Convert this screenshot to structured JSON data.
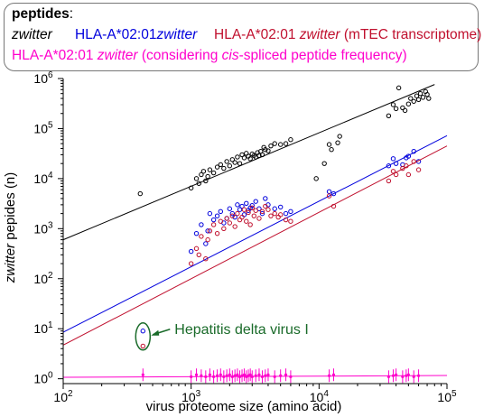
{
  "legend": {
    "title": "peptides",
    "title_suffix": ":",
    "entries": [
      {
        "parts": [
          {
            "t": "zwitter",
            "i": true
          }
        ],
        "color": "#000000"
      },
      {
        "parts": [
          {
            "t": "HLA-A*02:01",
            "i": false
          },
          {
            "t": "zwitter",
            "i": true
          }
        ],
        "color": "#0000dd"
      },
      {
        "parts": [
          {
            "t": "HLA-A*02:01 ",
            "i": false
          },
          {
            "t": "zwitter",
            "i": true
          },
          {
            "t": " (mTEC transcriptome)",
            "i": false
          }
        ],
        "color": "#c0102e"
      },
      {
        "parts": [
          {
            "t": "HLA-A*02:01 ",
            "i": false
          },
          {
            "t": "zwitter",
            "i": true
          },
          {
            "t": " (considering ",
            "i": false
          },
          {
            "t": "cis",
            "i": true
          },
          {
            "t": "-spliced peptide frequency)",
            "i": false
          }
        ],
        "color": "#ff00cc"
      }
    ]
  },
  "chart_data": {
    "type": "scatter",
    "xscale": "log",
    "yscale": "log",
    "xlim": [
      100,
      100000
    ],
    "ylim": [
      0.8,
      1000000
    ],
    "xticks": [
      {
        "base": "10",
        "exp": "2"
      },
      {
        "base": "10",
        "exp": "3"
      },
      {
        "base": "10",
        "exp": "4"
      },
      {
        "base": "10",
        "exp": "5"
      }
    ],
    "yticks": [
      {
        "base": "10",
        "exp": "0"
      },
      {
        "base": "10",
        "exp": "1"
      },
      {
        "base": "10",
        "exp": "2"
      },
      {
        "base": "10",
        "exp": "3"
      },
      {
        "base": "10",
        "exp": "4"
      },
      {
        "base": "10",
        "exp": "5"
      },
      {
        "base": "10",
        "exp": "6"
      }
    ],
    "xlabel": "virus proteome size (amino acid)",
    "ylabel_italic": "zwitter",
    "ylabel_rest": " pepides (n)",
    "annotation": {
      "text": "Hepatitis delta virus I",
      "color": "#1a6b2a",
      "x": 420,
      "y": 7
    },
    "series": [
      {
        "color": "#000000",
        "fit": [
          [
            100,
            600
          ],
          [
            80000,
            760000
          ]
        ],
        "points": [
          [
            400,
            5000
          ],
          [
            1000,
            6500
          ],
          [
            1100,
            10000
          ],
          [
            1150,
            8000
          ],
          [
            1200,
            12000
          ],
          [
            1250,
            14000
          ],
          [
            1300,
            9000
          ],
          [
            1350,
            11000
          ],
          [
            1400,
            15000
          ],
          [
            1500,
            13000
          ],
          [
            1600,
            17000
          ],
          [
            1700,
            19000
          ],
          [
            1800,
            16000
          ],
          [
            1900,
            22000
          ],
          [
            2000,
            18000
          ],
          [
            2100,
            24000
          ],
          [
            2200,
            21000
          ],
          [
            2300,
            27000
          ],
          [
            2400,
            20000
          ],
          [
            2500,
            30000
          ],
          [
            2600,
            26000
          ],
          [
            2700,
            32000
          ],
          [
            2800,
            28000
          ],
          [
            2900,
            25000
          ],
          [
            3000,
            31000
          ],
          [
            3100,
            29000
          ],
          [
            3200,
            27000
          ],
          [
            3300,
            33000
          ],
          [
            3400,
            29000
          ],
          [
            3500,
            35000
          ],
          [
            3600,
            30000
          ],
          [
            3700,
            42000
          ],
          [
            3800,
            38000
          ],
          [
            4000,
            36000
          ],
          [
            4200,
            45000
          ],
          [
            4500,
            50000
          ],
          [
            5000,
            48000
          ],
          [
            5500,
            50000
          ],
          [
            6000,
            60000
          ],
          [
            9500,
            10000
          ],
          [
            11000,
            20000
          ],
          [
            12000,
            48000
          ],
          [
            12500,
            38000
          ],
          [
            14000,
            52000
          ],
          [
            14500,
            70000
          ],
          [
            35000,
            180000
          ],
          [
            38000,
            300000
          ],
          [
            40000,
            250000
          ],
          [
            42000,
            650000
          ],
          [
            45000,
            260000
          ],
          [
            47000,
            230000
          ],
          [
            50000,
            310000
          ],
          [
            52000,
            400000
          ],
          [
            55000,
            350000
          ],
          [
            58000,
            450000
          ],
          [
            60000,
            380000
          ],
          [
            62000,
            500000
          ],
          [
            65000,
            420000
          ],
          [
            68000,
            550000
          ],
          [
            70000,
            480000
          ],
          [
            72000,
            400000
          ]
        ]
      },
      {
        "color": "#0000dd",
        "fit": [
          [
            100,
            8.5
          ],
          [
            100000,
            72000
          ]
        ],
        "points": [
          [
            420,
            9
          ],
          [
            1000,
            350
          ],
          [
            1100,
            800
          ],
          [
            1200,
            1200
          ],
          [
            1300,
            500
          ],
          [
            1350,
            900
          ],
          [
            1400,
            2000
          ],
          [
            1500,
            1500
          ],
          [
            1600,
            1800
          ],
          [
            1700,
            2200
          ],
          [
            1800,
            1300
          ],
          [
            1900,
            1600
          ],
          [
            2000,
            2500
          ],
          [
            2100,
            2000
          ],
          [
            2200,
            1700
          ],
          [
            2300,
            3000
          ],
          [
            2400,
            2400
          ],
          [
            2500,
            2800
          ],
          [
            2600,
            1900
          ],
          [
            2700,
            3200
          ],
          [
            2800,
            2300
          ],
          [
            2900,
            2600
          ],
          [
            3000,
            2900
          ],
          [
            3200,
            3500
          ],
          [
            3400,
            2500
          ],
          [
            3600,
            2000
          ],
          [
            3800,
            4000
          ],
          [
            4000,
            3000
          ],
          [
            4500,
            2500
          ],
          [
            5000,
            2700
          ],
          [
            5500,
            2000
          ],
          [
            6000,
            2200
          ],
          [
            12000,
            5500
          ],
          [
            13000,
            5000
          ],
          [
            35000,
            18000
          ],
          [
            38000,
            25000
          ],
          [
            40000,
            20000
          ],
          [
            45000,
            19000
          ],
          [
            48000,
            26000
          ],
          [
            50000,
            28000
          ],
          [
            55000,
            35000
          ],
          [
            60000,
            22000
          ]
        ]
      },
      {
        "color": "#c0102e",
        "fit": [
          [
            100,
            4.7
          ],
          [
            100000,
            45000
          ]
        ],
        "points": [
          [
            420,
            4.5
          ],
          [
            1000,
            200
          ],
          [
            1100,
            400
          ],
          [
            1150,
            300
          ],
          [
            1200,
            700
          ],
          [
            1300,
            250
          ],
          [
            1350,
            600
          ],
          [
            1400,
            900
          ],
          [
            1500,
            1200
          ],
          [
            1600,
            800
          ],
          [
            1700,
            1400
          ],
          [
            1800,
            1000
          ],
          [
            1900,
            1600
          ],
          [
            2000,
            1300
          ],
          [
            2100,
            1800
          ],
          [
            2200,
            1100
          ],
          [
            2300,
            2000
          ],
          [
            2400,
            1500
          ],
          [
            2500,
            1700
          ],
          [
            2600,
            2400
          ],
          [
            2700,
            1400
          ],
          [
            2800,
            2100
          ],
          [
            2900,
            1200
          ],
          [
            3000,
            2600
          ],
          [
            3100,
            1800
          ],
          [
            3200,
            2300
          ],
          [
            3400,
            1600
          ],
          [
            3600,
            2200
          ],
          [
            3800,
            2800
          ],
          [
            4000,
            2400
          ],
          [
            4200,
            1800
          ],
          [
            4500,
            2000
          ],
          [
            4800,
            1700
          ],
          [
            5000,
            1900
          ],
          [
            5500,
            1500
          ],
          [
            6000,
            1400
          ],
          [
            12000,
            4500
          ],
          [
            13000,
            2800
          ],
          [
            35000,
            9000
          ],
          [
            38000,
            14000
          ],
          [
            40000,
            12000
          ],
          [
            45000,
            16000
          ],
          [
            48000,
            18000
          ],
          [
            50000,
            12000
          ],
          [
            55000,
            22000
          ],
          [
            60000,
            15000
          ]
        ]
      },
      {
        "color": "#ff00cc",
        "fit": [
          [
            100,
            1.07
          ],
          [
            100000,
            1.16
          ]
        ],
        "points": [
          [
            420,
            1.2
          ],
          [
            1000,
            1.1
          ],
          [
            1100,
            1.2
          ],
          [
            1200,
            1.15
          ],
          [
            1300,
            1.1
          ],
          [
            1400,
            1.2
          ],
          [
            1500,
            1.1
          ],
          [
            1600,
            1.15
          ],
          [
            1700,
            1.2
          ],
          [
            1800,
            1.1
          ],
          [
            1900,
            1.15
          ],
          [
            2000,
            1.2
          ],
          [
            2100,
            1.1
          ],
          [
            2200,
            1.15
          ],
          [
            2300,
            1.2
          ],
          [
            2400,
            1.1
          ],
          [
            2500,
            1.15
          ],
          [
            2600,
            1.2
          ],
          [
            2700,
            1.1
          ],
          [
            2800,
            1.15
          ],
          [
            2900,
            1.2
          ],
          [
            3000,
            1.1
          ],
          [
            3200,
            1.15
          ],
          [
            3400,
            1.2
          ],
          [
            3600,
            1.1
          ],
          [
            3800,
            1.15
          ],
          [
            4000,
            1.2
          ],
          [
            4500,
            1.1
          ],
          [
            5000,
            1.15
          ],
          [
            5500,
            1.2
          ],
          [
            6000,
            1.1
          ],
          [
            12000,
            1.15
          ],
          [
            13000,
            1.2
          ],
          [
            35000,
            1.1
          ],
          [
            38000,
            1.15
          ],
          [
            40000,
            1.2
          ],
          [
            45000,
            1.1
          ],
          [
            48000,
            1.15
          ],
          [
            50000,
            1.2
          ],
          [
            55000,
            1.1
          ],
          [
            60000,
            1.15
          ]
        ]
      }
    ]
  }
}
